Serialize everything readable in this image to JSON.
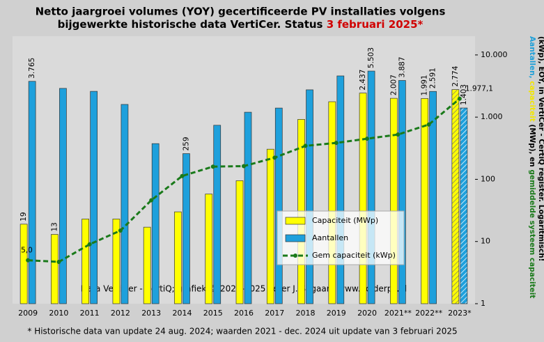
{
  "chart_data": {
    "type": "bar-line",
    "title": [
      "Netto jaargroei volumes (YOY) gecertificeerde  PV installaties  volgens",
      "bijgewerkte historische  data VertiCer. Status "
    ],
    "title_highlight": "3 februari  2025*",
    "title_highlight_color": "#d00000",
    "y_title": [
      [
        {
          "text": "Aantallen, ",
          "color": "#1e9fd8"
        },
        {
          "text": "capaciteit ",
          "color": "#f2e600"
        },
        {
          "text": "(MWp), en ",
          "color": "#000000"
        },
        {
          "text": "gemiddelde systeem capaciteit",
          "color": "#1a7a1a"
        }
      ],
      [
        {
          "text": "(kWp), EOY, in VertiCer - CertiQ register. Logaritmisch!",
          "color": "#000000"
        }
      ]
    ],
    "watermark": "Data VertiCer - CertiQ;  grafiek  © 2023-2025  Peter J. Segaar / www.polderpv.nl",
    "footnote": "* Historische data van update 24 aug. 2024; waarden 2021 - dec. 2024 uit update van 3 februari 2025",
    "categories": [
      "2009",
      "2010",
      "2011",
      "2012",
      "2013",
      "2014",
      "2015",
      "2016",
      "2017",
      "2018",
      "2019",
      "2020",
      "2021**",
      "2022**",
      "2023*"
    ],
    "series": [
      {
        "name": "Capaciteit (MWp)",
        "kind": "bar",
        "color": "#ffff00",
        "label_color": "#000000",
        "values": [
          19,
          13,
          23,
          23,
          17,
          30,
          58,
          95,
          305,
          920,
          1770,
          2437,
          2007,
          1991,
          2774
        ],
        "value_labels": [
          "19",
          "13",
          null,
          null,
          null,
          null,
          null,
          null,
          null,
          null,
          null,
          "2.437",
          "2.007",
          "1.991",
          "2.774"
        ]
      },
      {
        "name": "Aantallen",
        "kind": "bar",
        "color": "#1ea0dc",
        "label_color": "#1e7fc8",
        "values": [
          3765,
          2900,
          2600,
          1600,
          375,
          259,
          740,
          1200,
          1400,
          2750,
          4600,
          5503,
          3887,
          2591,
          1403
        ],
        "value_labels": [
          "3.765",
          null,
          null,
          null,
          null,
          "259",
          null,
          null,
          null,
          null,
          null,
          "5.503",
          "3.887",
          "2.591",
          "1.403"
        ]
      },
      {
        "name": "Gem capaciteit (kWp)",
        "kind": "line",
        "color": "#1a7a1a",
        "label_color": "#1a7a1a",
        "values": [
          5.0,
          4.7,
          9,
          15,
          46,
          113,
          160,
          163,
          223,
          345,
          385,
          450,
          525,
          760,
          1977.1
        ],
        "value_labels": [
          "5,0",
          null,
          null,
          null,
          null,
          null,
          null,
          null,
          null,
          null,
          null,
          null,
          null,
          null,
          "1.977,1"
        ]
      }
    ],
    "hatched_index": 14,
    "log_scale": true,
    "ylim": [
      1,
      20000
    ],
    "yticks": [
      1,
      10,
      100,
      {
        "value": 1000,
        "label": "1.000"
      },
      {
        "value": 10000,
        "label": "10.000"
      }
    ],
    "legend": "center-right"
  }
}
